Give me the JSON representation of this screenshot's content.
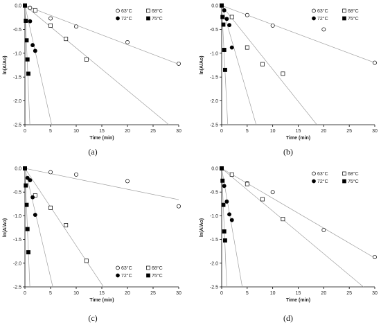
{
  "chart_data": [
    {
      "type": "scatter",
      "caption": "(a)",
      "xlabel": "Time (min)",
      "ylabel": "ln(A/Ao)",
      "xlim": [
        0,
        30
      ],
      "ylim": [
        -2.5,
        0
      ],
      "xticks": [
        "0",
        "5",
        "10",
        "15",
        "20",
        "25",
        "30"
      ],
      "yticks": [
        "0.0",
        "-0.5",
        "-1.0",
        "-1.5",
        "-2.0",
        "-2.5"
      ],
      "legend_position": "top-right",
      "series": [
        {
          "name": "63°C",
          "marker": "open-circle",
          "x": [
            0,
            1,
            5,
            10,
            20,
            30
          ],
          "y": [
            0,
            -0.05,
            -0.27,
            -0.44,
            -0.77,
            -1.22
          ],
          "fit_slope": -0.041
        },
        {
          "name": "68°C",
          "marker": "open-square",
          "x": [
            0,
            2,
            5,
            8,
            12
          ],
          "y": [
            0,
            -0.1,
            -0.42,
            -0.7,
            -1.13
          ],
          "fit_slope": -0.089
        },
        {
          "name": "72°C",
          "marker": "filled-circle",
          "x": [
            0,
            1,
            1.5,
            2
          ],
          "y": [
            0,
            -0.33,
            -0.83,
            -0.95
          ],
          "fit_slope": -0.48
        },
        {
          "name": "75°C",
          "marker": "filled-square",
          "x": [
            0,
            0.17,
            0.33,
            0.5,
            0.67
          ],
          "y": [
            0,
            -0.32,
            -0.73,
            -1.13,
            -1.43
          ],
          "fit_slope": -2.6
        }
      ]
    },
    {
      "type": "scatter",
      "caption": "(b)",
      "xlabel": "Time (min)",
      "ylabel": "ln(A/Ao)",
      "xlim": [
        0,
        30
      ],
      "ylim": [
        -2.5,
        0
      ],
      "xticks": [
        "0",
        "5",
        "10",
        "15",
        "20",
        "25",
        "30"
      ],
      "yticks": [
        "0.0",
        "-0.5",
        "-1.0",
        "-1.5",
        "-2.0",
        "-2.5"
      ],
      "legend_position": "top-right",
      "series": [
        {
          "name": "63°C",
          "marker": "open-circle",
          "x": [
            0,
            5,
            10,
            20,
            30
          ],
          "y": [
            0,
            -0.2,
            -0.42,
            -0.5,
            -1.2
          ],
          "fit_slope": -0.04
        },
        {
          "name": "68°C",
          "marker": "open-square",
          "x": [
            0,
            2,
            5,
            8,
            12
          ],
          "y": [
            0,
            -0.24,
            -0.88,
            -1.23,
            -1.43
          ],
          "fit_slope": -0.134
        },
        {
          "name": "72°C",
          "marker": "filled-circle",
          "x": [
            0,
            0.5,
            1,
            1.5,
            2
          ],
          "y": [
            0,
            -0.1,
            -0.28,
            -0.41,
            -0.88
          ],
          "fit_slope": -0.37
        },
        {
          "name": "75°C",
          "marker": "filled-square",
          "x": [
            0,
            0.17,
            0.33,
            0.5,
            0.67
          ],
          "y": [
            0,
            -0.24,
            -0.4,
            -0.93,
            -1.35
          ],
          "fit_slope": -2.1
        }
      ]
    },
    {
      "type": "scatter",
      "caption": "(c)",
      "xlabel": "Time (min)",
      "ylabel": "ln(A/Ao)",
      "xlim": [
        0,
        30
      ],
      "ylim": [
        -2.5,
        0
      ],
      "xticks": [
        "0",
        "5",
        "10",
        "15",
        "20",
        "25",
        "30"
      ],
      "yticks": [
        "0.0",
        "-0.5",
        "-1.0",
        "-1.5",
        "-2.0",
        "-2.5"
      ],
      "legend_position": "bottom-right",
      "series": [
        {
          "name": "63°C",
          "marker": "open-circle",
          "x": [
            0,
            5,
            10,
            20,
            30
          ],
          "y": [
            0,
            -0.08,
            -0.13,
            -0.27,
            -0.8
          ],
          "fit_slope": -0.022
        },
        {
          "name": "68°C",
          "marker": "open-square",
          "x": [
            0,
            2,
            5,
            8,
            12
          ],
          "y": [
            0,
            -0.57,
            -0.83,
            -1.2,
            -1.95
          ],
          "fit_slope": -0.163
        },
        {
          "name": "72°C",
          "marker": "filled-circle",
          "x": [
            0,
            0.5,
            1,
            1.5,
            2
          ],
          "y": [
            0,
            -0.2,
            -0.25,
            -0.61,
            -0.98
          ],
          "fit_slope": -0.46
        },
        {
          "name": "75°C",
          "marker": "filled-square",
          "x": [
            0,
            0.17,
            0.33,
            0.5,
            0.67
          ],
          "y": [
            0,
            -0.36,
            -0.77,
            -1.28,
            -1.77
          ],
          "fit_slope": -2.6
        }
      ]
    },
    {
      "type": "scatter",
      "caption": "(d)",
      "xlabel": "Time (min)",
      "ylabel": "ln(A/Ao)",
      "xlim": [
        0,
        30
      ],
      "ylim": [
        -2.5,
        0
      ],
      "xticks": [
        "0",
        "5",
        "10",
        "15",
        "20",
        "25",
        "30"
      ],
      "yticks": [
        "0.0",
        "-0.5",
        "-1.0",
        "-1.5",
        "-2.0",
        "-2.5"
      ],
      "legend_position": "top-right",
      "series": [
        {
          "name": "63°C",
          "marker": "open-circle",
          "x": [
            0,
            5,
            10,
            20,
            30
          ],
          "y": [
            0,
            -0.31,
            -0.5,
            -1.3,
            -1.87
          ],
          "fit_slope": -0.063
        },
        {
          "name": "68°C",
          "marker": "open-square",
          "x": [
            0,
            2,
            5,
            8,
            12
          ],
          "y": [
            0,
            -0.13,
            -0.33,
            -0.65,
            -1.07
          ],
          "fit_slope": -0.09
        },
        {
          "name": "72°C",
          "marker": "filled-circle",
          "x": [
            0,
            0.5,
            1,
            1.5,
            2
          ],
          "y": [
            0,
            -0.37,
            -0.7,
            -0.97,
            -1.09
          ],
          "fit_slope": -0.62
        },
        {
          "name": "75°C",
          "marker": "filled-square",
          "x": [
            0,
            0.17,
            0.33,
            0.5,
            0.67
          ],
          "y": [
            0,
            -0.26,
            -0.77,
            -1.33,
            -1.52
          ],
          "fit_slope": -2.5
        }
      ]
    }
  ]
}
